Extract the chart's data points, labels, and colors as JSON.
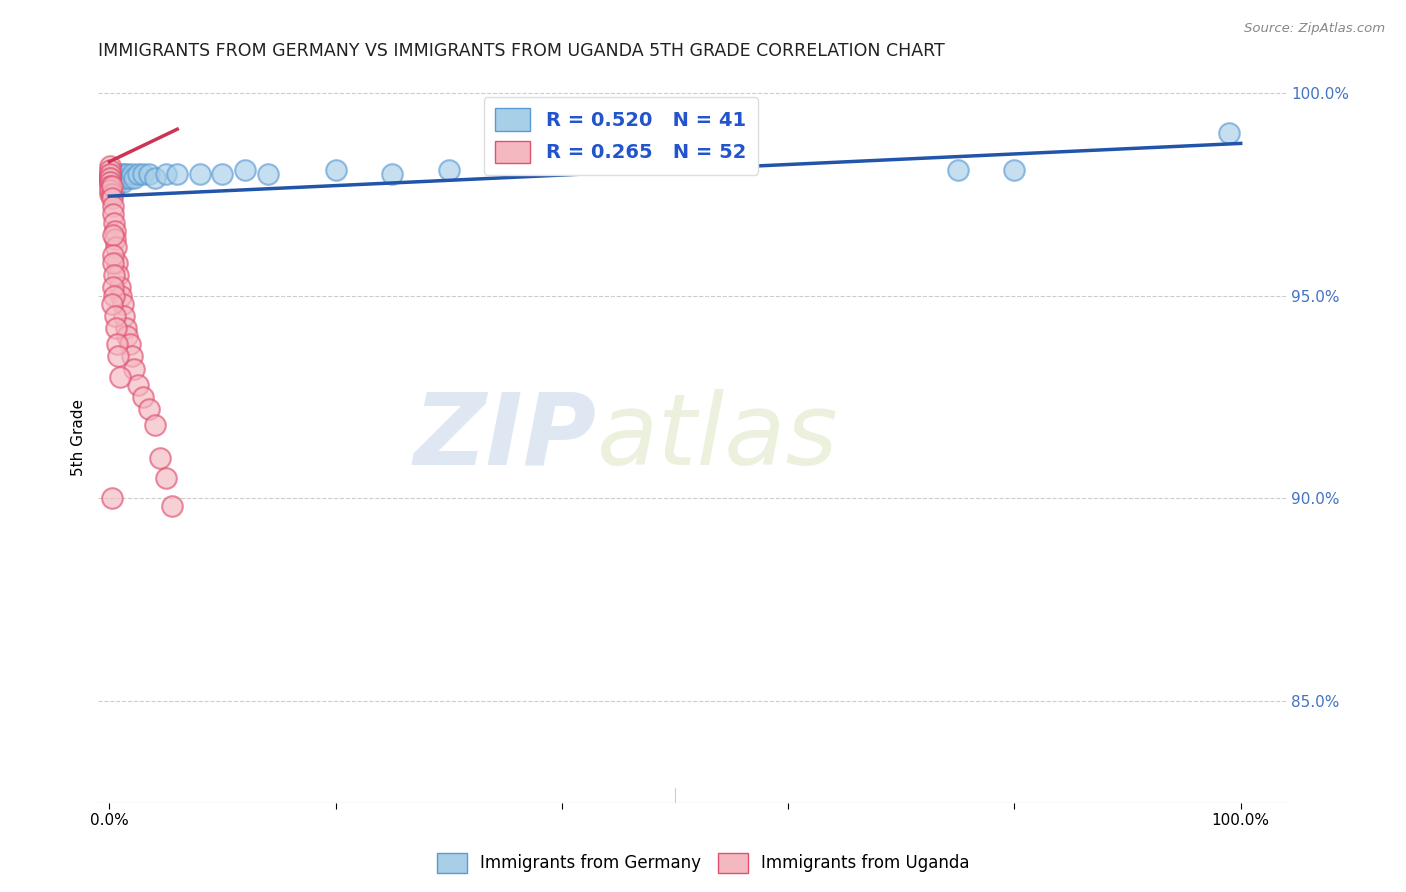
{
  "title": "IMMIGRANTS FROM GERMANY VS IMMIGRANTS FROM UGANDA 5TH GRADE CORRELATION CHART",
  "source": "Source: ZipAtlas.com",
  "ylabel": "5th Grade",
  "germany_color": "#a8cfe8",
  "germany_edge": "#5b9bd5",
  "uganda_color": "#f4b8c1",
  "uganda_edge": "#e05070",
  "r_germany": 0.52,
  "n_germany": 41,
  "r_uganda": 0.265,
  "n_uganda": 52,
  "legend_germany": "Immigrants from Germany",
  "legend_uganda": "Immigrants from Uganda",
  "watermark_zip": "ZIP",
  "watermark_atlas": "atlas",
  "background_color": "#ffffff",
  "grid_color": "#cccccc",
  "right_tick_color": "#4472c4",
  "ylim_low": 0.825,
  "ylim_high": 1.005,
  "xlim_low": -0.01,
  "xlim_high": 1.04,
  "y_ticks": [
    0.85,
    0.9,
    0.95,
    1.0
  ],
  "y_tick_labels": [
    "85.0%",
    "90.0%",
    "95.0%",
    "100.0%"
  ],
  "x_ticks": [
    0.0,
    0.2,
    0.4,
    0.6,
    0.8,
    1.0
  ],
  "x_tick_labels_show": [
    "0.0%",
    "",
    "",
    "",
    "",
    "100.0%"
  ],
  "germany_x": [
    0.001,
    0.001,
    0.002,
    0.002,
    0.003,
    0.003,
    0.004,
    0.005,
    0.005,
    0.006,
    0.006,
    0.007,
    0.007,
    0.008,
    0.009,
    0.01,
    0.01,
    0.011,
    0.012,
    0.013,
    0.015,
    0.016,
    0.018,
    0.02,
    0.022,
    0.025,
    0.03,
    0.035,
    0.04,
    0.05,
    0.06,
    0.08,
    0.1,
    0.12,
    0.14,
    0.2,
    0.25,
    0.3,
    0.75,
    0.8,
    0.99
  ],
  "germany_y": [
    0.98,
    0.978,
    0.979,
    0.977,
    0.976,
    0.978,
    0.979,
    0.978,
    0.977,
    0.979,
    0.98,
    0.978,
    0.979,
    0.978,
    0.979,
    0.979,
    0.98,
    0.979,
    0.978,
    0.98,
    0.979,
    0.98,
    0.979,
    0.98,
    0.979,
    0.98,
    0.98,
    0.98,
    0.979,
    0.98,
    0.98,
    0.98,
    0.98,
    0.981,
    0.98,
    0.981,
    0.98,
    0.981,
    0.981,
    0.981,
    0.99
  ],
  "uganda_x": [
    0.0002,
    0.0003,
    0.0004,
    0.0005,
    0.0006,
    0.0007,
    0.0008,
    0.001,
    0.001,
    0.001,
    0.001,
    0.001,
    0.002,
    0.002,
    0.002,
    0.003,
    0.003,
    0.004,
    0.005,
    0.005,
    0.006,
    0.007,
    0.008,
    0.009,
    0.01,
    0.012,
    0.013,
    0.015,
    0.016,
    0.018,
    0.02,
    0.022,
    0.025,
    0.03,
    0.035,
    0.04,
    0.045,
    0.05,
    0.055,
    0.003,
    0.003,
    0.003,
    0.004,
    0.003,
    0.004,
    0.002,
    0.005,
    0.006,
    0.007,
    0.008,
    0.009,
    0.002
  ],
  "uganda_y": [
    0.982,
    0.98,
    0.979,
    0.981,
    0.979,
    0.98,
    0.978,
    0.979,
    0.978,
    0.977,
    0.975,
    0.976,
    0.975,
    0.977,
    0.974,
    0.972,
    0.97,
    0.968,
    0.966,
    0.964,
    0.962,
    0.958,
    0.955,
    0.952,
    0.95,
    0.948,
    0.945,
    0.942,
    0.94,
    0.938,
    0.935,
    0.932,
    0.928,
    0.925,
    0.922,
    0.918,
    0.91,
    0.905,
    0.898,
    0.965,
    0.96,
    0.958,
    0.955,
    0.952,
    0.95,
    0.948,
    0.945,
    0.942,
    0.938,
    0.935,
    0.93,
    0.9
  ],
  "germany_trend_x": [
    0.0,
    1.0
  ],
  "germany_trend_y": [
    0.9745,
    0.9875
  ],
  "uganda_trend_x": [
    0.0,
    0.06
  ],
  "uganda_trend_y": [
    0.983,
    0.991
  ],
  "germany_trend_color": "#2255aa",
  "uganda_trend_color": "#cc3355"
}
